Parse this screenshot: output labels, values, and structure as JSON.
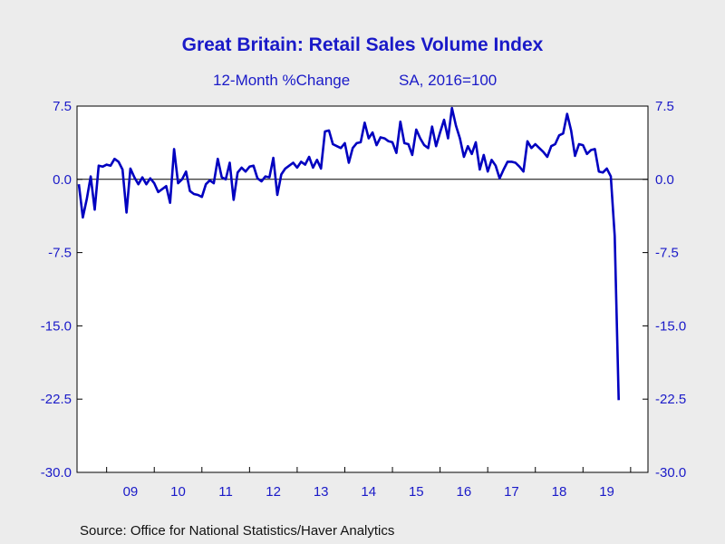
{
  "title": "Great Britain: Retail Sales Volume Index",
  "subtitle_left": "12-Month %Change",
  "subtitle_right": "SA, 2016=100",
  "source": "Source:  Office for National Statistics/Haver Analytics",
  "colors": {
    "line": "#0000c0",
    "title": "#1a1ac8",
    "axis_text": "#1a1ac8",
    "plot_bg": "#ffffff",
    "page_bg": "#ececec"
  },
  "chart_data": {
    "type": "line",
    "title": "Great Britain: Retail Sales Volume Index",
    "subtitle": "12-Month %Change    SA, 2016=100",
    "xlabel": "",
    "ylabel": "",
    "ylim": [
      -30.0,
      7.5
    ],
    "yticks": [
      "7.5",
      "0.0",
      "-7.5",
      "-15.0",
      "-22.5",
      "-30.0"
    ],
    "xticks": [
      "09",
      "10",
      "11",
      "12",
      "13",
      "14",
      "15",
      "16",
      "17",
      "18",
      "19"
    ],
    "x_start": "2008-06",
    "x_end": "2020-04",
    "frequency": "monthly",
    "grid": "zero line only",
    "series": [
      {
        "values": [
          -0.5,
          -3.9,
          -2.0,
          0.3,
          -3.1,
          1.4,
          1.3,
          1.5,
          1.4,
          2.1,
          1.8,
          1.0,
          -3.4,
          1.1,
          0.2,
          -0.5,
          0.2,
          -0.5,
          0.1,
          -0.4,
          -1.3,
          -1.0,
          -0.7,
          -2.4,
          3.1,
          -0.4,
          0.0,
          0.8,
          -1.2,
          -1.5,
          -1.6,
          -1.8,
          -0.5,
          -0.1,
          -0.4,
          2.1,
          0.2,
          0.0,
          1.7,
          -2.1,
          0.7,
          1.2,
          0.8,
          1.3,
          1.4,
          0.1,
          -0.2,
          0.3,
          0.2,
          2.2,
          -1.6,
          0.5,
          1.1,
          1.4,
          1.7,
          1.2,
          1.8,
          1.5,
          2.3,
          1.2,
          2.0,
          1.1,
          4.9,
          5.0,
          3.6,
          3.4,
          3.2,
          3.7,
          1.7,
          3.2,
          3.7,
          3.8,
          5.8,
          4.2,
          4.8,
          3.5,
          4.3,
          4.2,
          3.9,
          3.8,
          2.7,
          5.9,
          3.7,
          3.6,
          2.5,
          5.1,
          4.2,
          3.5,
          3.2,
          5.4,
          3.4,
          4.8,
          6.1,
          4.2,
          7.3,
          5.5,
          4.2,
          2.3,
          3.4,
          2.6,
          3.8,
          1.0,
          2.5,
          0.8,
          2.0,
          1.4,
          0.1,
          1.0,
          1.8,
          1.8,
          1.7,
          1.3,
          0.8,
          3.9,
          3.2,
          3.6,
          3.2,
          2.8,
          2.3,
          3.4,
          3.6,
          4.5,
          4.7,
          6.7,
          5.0,
          2.4,
          3.6,
          3.5,
          2.6,
          3.0,
          3.1,
          0.8,
          0.7,
          1.1,
          0.3,
          -5.8,
          -22.6
        ]
      }
    ]
  }
}
